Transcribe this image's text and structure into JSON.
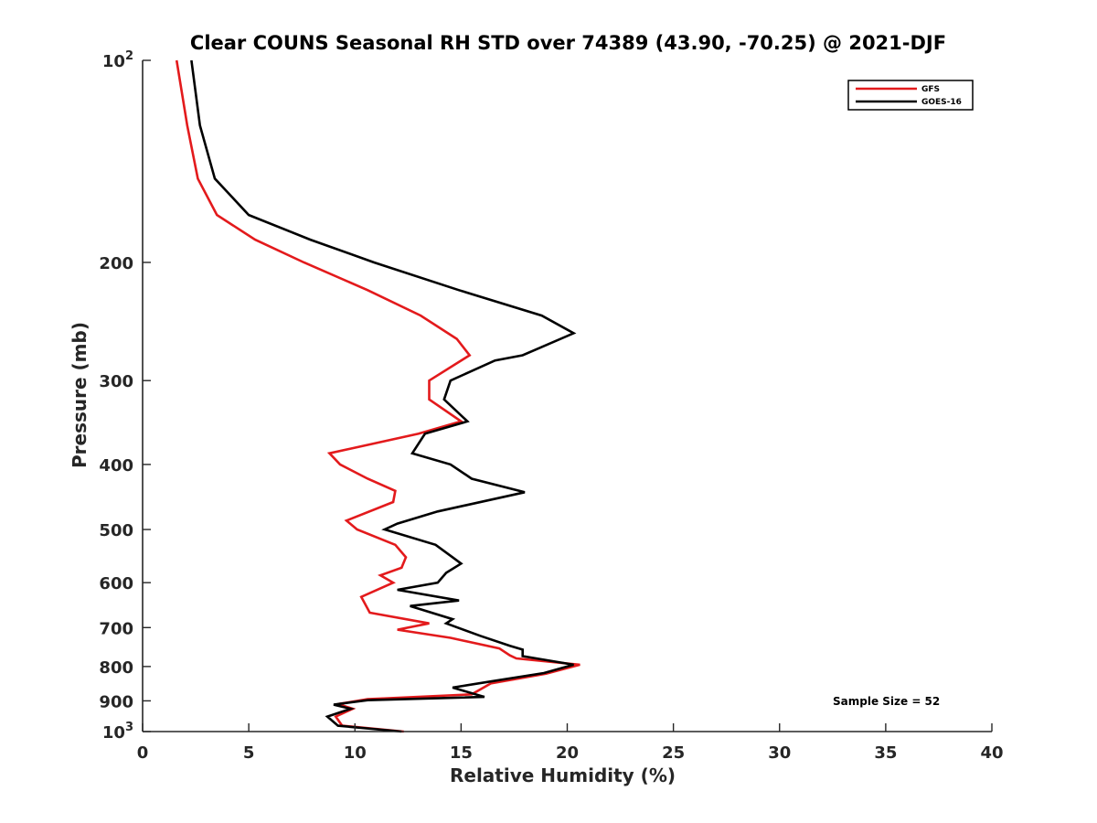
{
  "chart_data": {
    "type": "line",
    "title": "Clear COUNS Seasonal RH STD over 74389 (43.90, -70.25) @ 2021-DJF",
    "xlabel": "Relative Humidity (%)",
    "ylabel": "Pressure (mb)",
    "xlim": [
      0,
      40
    ],
    "ylim": [
      100,
      1000
    ],
    "yscale": "log",
    "y_reversed": true,
    "xticks": [
      0,
      5,
      10,
      15,
      20,
      25,
      30,
      35,
      40
    ],
    "yticks": [
      {
        "value": 100,
        "label": "10",
        "sup": "2"
      },
      {
        "value": 200,
        "label": "200"
      },
      {
        "value": 300,
        "label": "300"
      },
      {
        "value": 400,
        "label": "400"
      },
      {
        "value": 500,
        "label": "500"
      },
      {
        "value": 600,
        "label": "600"
      },
      {
        "value": 700,
        "label": "700"
      },
      {
        "value": 800,
        "label": "800"
      },
      {
        "value": 900,
        "label": "900"
      },
      {
        "value": 1000,
        "label": "10",
        "sup": "3"
      }
    ],
    "legend_position": "top-right",
    "annotation": "Sample Size = 52",
    "series": [
      {
        "name": "GFS",
        "color": "#e31a1c",
        "points": [
          [
            1.6,
            100
          ],
          [
            2.1,
            125
          ],
          [
            2.6,
            150
          ],
          [
            3.5,
            170
          ],
          [
            5.3,
            185
          ],
          [
            7.6,
            200
          ],
          [
            10.6,
            220
          ],
          [
            13.1,
            240
          ],
          [
            14.8,
            260
          ],
          [
            15.4,
            275
          ],
          [
            13.5,
            300
          ],
          [
            13.5,
            320
          ],
          [
            15.0,
            345
          ],
          [
            13.0,
            360
          ],
          [
            8.8,
            385
          ],
          [
            9.3,
            400
          ],
          [
            10.6,
            420
          ],
          [
            11.9,
            438
          ],
          [
            11.8,
            455
          ],
          [
            9.6,
            485
          ],
          [
            10.1,
            500
          ],
          [
            11.9,
            527
          ],
          [
            12.4,
            550
          ],
          [
            12.2,
            570
          ],
          [
            11.2,
            585
          ],
          [
            11.8,
            600
          ],
          [
            10.3,
            630
          ],
          [
            10.7,
            665
          ],
          [
            13.5,
            690
          ],
          [
            12.0,
            705
          ],
          [
            14.5,
            725
          ],
          [
            16.8,
            752
          ],
          [
            17.3,
            770
          ],
          [
            17.6,
            778
          ],
          [
            20.6,
            795
          ],
          [
            19.0,
            820
          ],
          [
            16.4,
            848
          ],
          [
            15.5,
            880
          ],
          [
            10.6,
            895
          ],
          [
            9.2,
            910
          ],
          [
            9.9,
            925
          ],
          [
            9.1,
            950
          ],
          [
            9.4,
            980
          ],
          [
            12.3,
            1000
          ]
        ]
      },
      {
        "name": "GOES-16",
        "color": "#000000",
        "points": [
          [
            2.3,
            100
          ],
          [
            2.7,
            125
          ],
          [
            3.4,
            150
          ],
          [
            5.0,
            170
          ],
          [
            7.9,
            185
          ],
          [
            10.9,
            200
          ],
          [
            14.9,
            220
          ],
          [
            18.8,
            240
          ],
          [
            20.3,
            255
          ],
          [
            17.9,
            275
          ],
          [
            16.6,
            280
          ],
          [
            14.5,
            300
          ],
          [
            14.2,
            320
          ],
          [
            15.3,
            345
          ],
          [
            13.3,
            360
          ],
          [
            12.7,
            385
          ],
          [
            14.5,
            400
          ],
          [
            15.5,
            420
          ],
          [
            18.0,
            440
          ],
          [
            13.9,
            470
          ],
          [
            12.0,
            490
          ],
          [
            11.4,
            500
          ],
          [
            13.8,
            527
          ],
          [
            14.6,
            550
          ],
          [
            15.0,
            562
          ],
          [
            14.3,
            580
          ],
          [
            13.9,
            600
          ],
          [
            12.0,
            615
          ],
          [
            14.9,
            638
          ],
          [
            12.6,
            650
          ],
          [
            14.6,
            680
          ],
          [
            14.3,
            690
          ],
          [
            15.9,
            720
          ],
          [
            17.3,
            745
          ],
          [
            17.9,
            755
          ],
          [
            17.9,
            772
          ],
          [
            20.3,
            795
          ],
          [
            18.9,
            818
          ],
          [
            16.4,
            842
          ],
          [
            14.6,
            860
          ],
          [
            16.1,
            888
          ],
          [
            10.6,
            898
          ],
          [
            9.0,
            912
          ],
          [
            9.8,
            925
          ],
          [
            8.7,
            950
          ],
          [
            9.2,
            980
          ],
          [
            12.2,
            1000
          ]
        ]
      }
    ]
  }
}
